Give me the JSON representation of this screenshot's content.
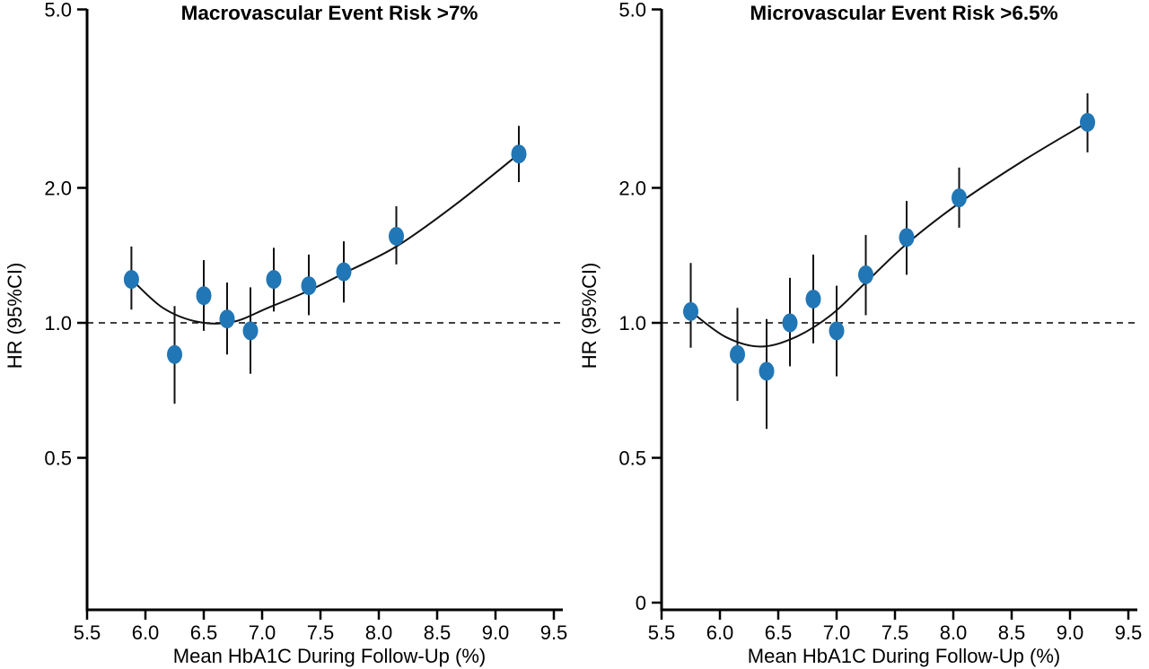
{
  "figure": {
    "background": "#ffffff",
    "axis_color": "#000000",
    "text_color": "#000000"
  },
  "chart_data": [
    {
      "type": "scatter",
      "title": "Macrovascular Event Risk >7%",
      "xlabel": "Mean HbA1C During Follow-Up (%)",
      "ylabel": "HR (95%CI)",
      "y_scale": "log",
      "xlim": [
        5.5,
        9.5
      ],
      "x_tick_values": [
        5.5,
        6.0,
        6.5,
        7.0,
        7.5,
        8.0,
        8.5,
        9.0,
        9.5
      ],
      "x_tick_labels": [
        "5.5",
        "6.0",
        "6.5",
        "7.0",
        "7.5",
        "8.0",
        "8.5",
        "9.0",
        "9.5"
      ],
      "y_ticks": [
        {
          "value": 5.0,
          "label": "5.0"
        },
        {
          "value": 2.0,
          "label": "2.0"
        },
        {
          "value": 1.0,
          "label": "1.0"
        },
        {
          "value": 0.5,
          "label": "0.5"
        }
      ],
      "reference_line": 1.0,
      "point_color": "#2176b5",
      "line_color": "#111111",
      "points": [
        {
          "x": 5.88,
          "hr": 1.25,
          "ci_low": 1.07,
          "ci_high": 1.48
        },
        {
          "x": 6.25,
          "hr": 0.85,
          "ci_low": 0.66,
          "ci_high": 1.09
        },
        {
          "x": 6.5,
          "hr": 1.15,
          "ci_low": 0.96,
          "ci_high": 1.38
        },
        {
          "x": 6.7,
          "hr": 1.02,
          "ci_low": 0.85,
          "ci_high": 1.23
        },
        {
          "x": 6.9,
          "hr": 0.96,
          "ci_low": 0.77,
          "ci_high": 1.2
        },
        {
          "x": 7.1,
          "hr": 1.25,
          "ci_low": 1.06,
          "ci_high": 1.47
        },
        {
          "x": 7.4,
          "hr": 1.21,
          "ci_low": 1.04,
          "ci_high": 1.42
        },
        {
          "x": 7.7,
          "hr": 1.3,
          "ci_low": 1.11,
          "ci_high": 1.52
        },
        {
          "x": 8.15,
          "hr": 1.56,
          "ci_low": 1.35,
          "ci_high": 1.82
        },
        {
          "x": 9.2,
          "hr": 2.38,
          "ci_low": 2.06,
          "ci_high": 2.75
        }
      ],
      "curve": [
        [
          5.88,
          1.25
        ],
        [
          6.15,
          1.08
        ],
        [
          6.45,
          1.005
        ],
        [
          6.75,
          1.005
        ],
        [
          7.05,
          1.08
        ],
        [
          7.4,
          1.18
        ],
        [
          7.7,
          1.29
        ],
        [
          8.15,
          1.48
        ],
        [
          8.65,
          1.83
        ],
        [
          9.2,
          2.38
        ]
      ]
    },
    {
      "type": "scatter",
      "title": "Microvascular Event Risk >6.5%",
      "xlabel": "Mean HbA1C During Follow-Up (%)",
      "ylabel": "HR (95%CI)",
      "y_scale": "log",
      "xlim": [
        5.5,
        9.5
      ],
      "x_tick_values": [
        5.5,
        6.0,
        6.5,
        7.0,
        7.5,
        8.0,
        8.5,
        9.0,
        9.5
      ],
      "x_tick_labels": [
        "5.5",
        "6.0",
        "6.5",
        "7.0",
        "7.5",
        "8.0",
        "8.5",
        "9.0",
        "9.5"
      ],
      "y_ticks": [
        {
          "value": 5.0,
          "label": "5.0"
        },
        {
          "value": 2.0,
          "label": "2.0"
        },
        {
          "value": 1.0,
          "label": "1.0"
        },
        {
          "value": 0.5,
          "label": "0.5"
        },
        {
          "value": 0,
          "label": "0"
        }
      ],
      "reference_line": 1.0,
      "point_color": "#2176b5",
      "line_color": "#111111",
      "points": [
        {
          "x": 5.75,
          "hr": 1.06,
          "ci_low": 0.88,
          "ci_high": 1.36
        },
        {
          "x": 6.15,
          "hr": 0.85,
          "ci_low": 0.67,
          "ci_high": 1.08
        },
        {
          "x": 6.4,
          "hr": 0.78,
          "ci_low": 0.58,
          "ci_high": 1.02
        },
        {
          "x": 6.6,
          "hr": 1.0,
          "ci_low": 0.8,
          "ci_high": 1.26
        },
        {
          "x": 6.8,
          "hr": 1.13,
          "ci_low": 0.9,
          "ci_high": 1.42
        },
        {
          "x": 7.0,
          "hr": 0.96,
          "ci_low": 0.76,
          "ci_high": 1.21
        },
        {
          "x": 7.25,
          "hr": 1.28,
          "ci_low": 1.04,
          "ci_high": 1.57
        },
        {
          "x": 7.6,
          "hr": 1.55,
          "ci_low": 1.28,
          "ci_high": 1.87
        },
        {
          "x": 8.05,
          "hr": 1.9,
          "ci_low": 1.63,
          "ci_high": 2.22
        },
        {
          "x": 9.15,
          "hr": 2.8,
          "ci_low": 2.4,
          "ci_high": 3.25
        }
      ],
      "curve": [
        [
          5.75,
          1.06
        ],
        [
          6.05,
          0.93
        ],
        [
          6.35,
          0.885
        ],
        [
          6.65,
          0.93
        ],
        [
          6.95,
          1.04
        ],
        [
          7.25,
          1.23
        ],
        [
          7.6,
          1.5
        ],
        [
          8.05,
          1.85
        ],
        [
          8.6,
          2.3
        ],
        [
          9.15,
          2.8
        ]
      ]
    }
  ]
}
